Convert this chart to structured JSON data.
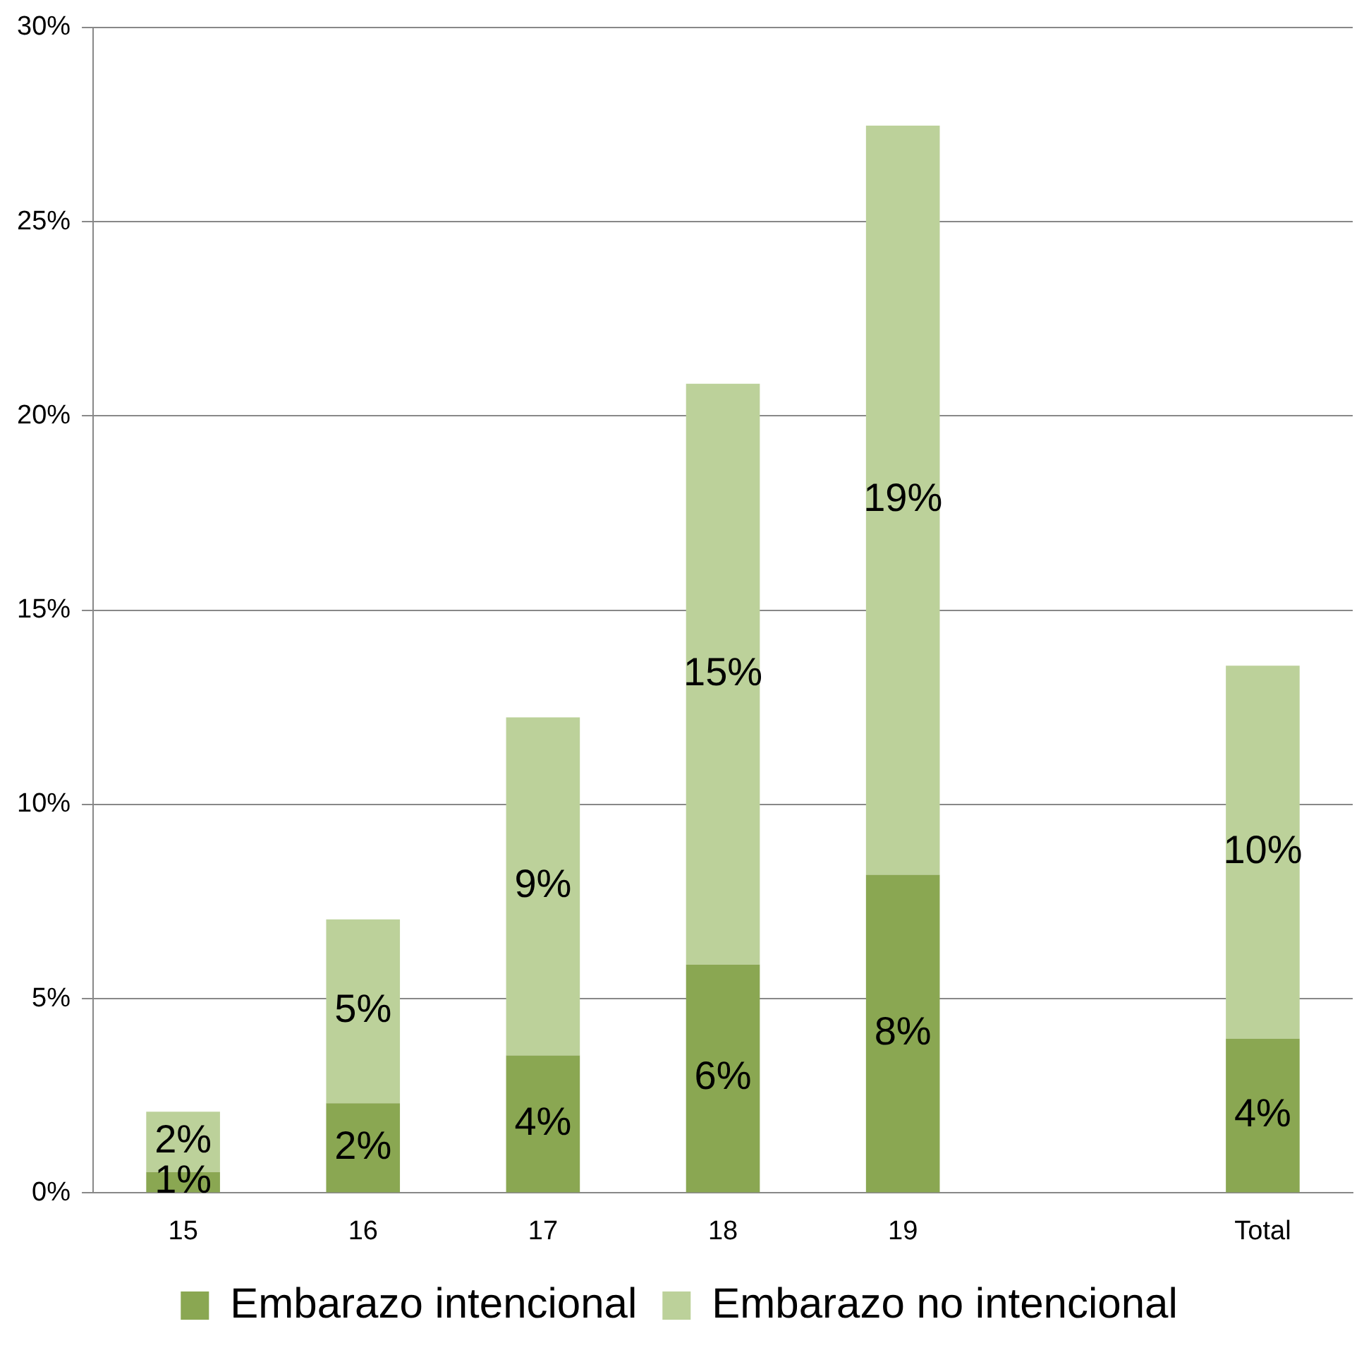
{
  "chart_data": {
    "type": "bar",
    "stacked": true,
    "categories": [
      "15",
      "16",
      "17",
      "18",
      "19",
      null,
      "Total"
    ],
    "series": [
      {
        "name": "Embarazo intencional",
        "color": "#8aa752",
        "values": [
          0.54,
          2.31,
          3.54,
          5.88,
          8.19,
          null,
          3.97
        ],
        "value_labels": [
          "1%",
          "2%",
          "4%",
          "6%",
          "8%",
          null,
          "4%"
        ]
      },
      {
        "name": "Embarazo no intencional",
        "color": "#bcd19a",
        "values": [
          1.55,
          4.73,
          8.7,
          14.95,
          19.28,
          null,
          9.6
        ],
        "value_labels": [
          "2%",
          "5%",
          "9%",
          "15%",
          "19%",
          null,
          "10%"
        ]
      }
    ],
    "ylim": [
      0,
      30
    ],
    "yticks": [
      {
        "value": 0,
        "label": "0%"
      },
      {
        "value": 5,
        "label": "5%"
      },
      {
        "value": 10,
        "label": "10%"
      },
      {
        "value": 15,
        "label": "15%"
      },
      {
        "value": 20,
        "label": "20%"
      },
      {
        "value": 25,
        "label": "25%"
      },
      {
        "value": 30,
        "label": "30%"
      }
    ],
    "grid": "y",
    "legend": "bottom"
  }
}
